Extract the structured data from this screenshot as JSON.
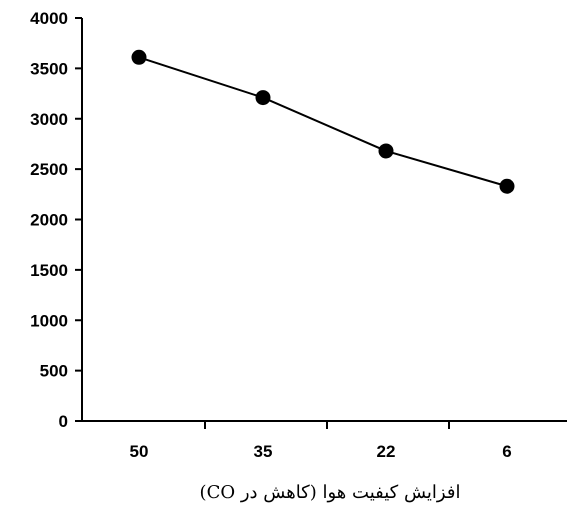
{
  "chart_data": {
    "type": "line",
    "title": "",
    "xlabel": "افزایش کیفیت هوا (کاهش در CO)",
    "ylabel": "",
    "categories": [
      "50",
      "35",
      "22",
      "6"
    ],
    "series": [
      {
        "values": [
          3610,
          3210,
          2680,
          2330
        ]
      }
    ],
    "ylim": [
      0,
      4000
    ],
    "yticks": [
      0,
      500,
      1000,
      1500,
      2000,
      2500,
      3000,
      3500,
      4000
    ],
    "ytick_labels": [
      "0",
      "500",
      "1000",
      "1500",
      "2000",
      "2500",
      "3000",
      "3500",
      "4000"
    ],
    "grid": false,
    "legend": "none",
    "colors": {
      "line": "#000000",
      "marker": "#000000",
      "axis": "#000000",
      "background": "#ffffff"
    }
  }
}
